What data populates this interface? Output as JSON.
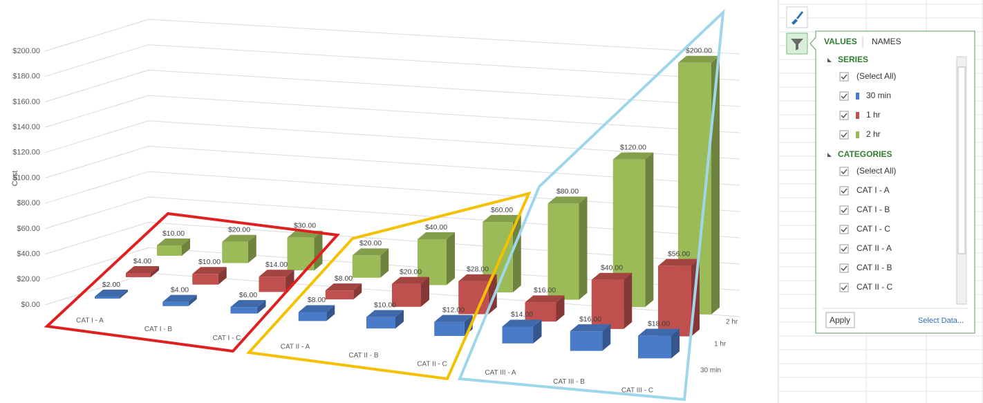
{
  "chart_data": {
    "type": "bar3d",
    "y_axis_title": "Cost",
    "categories": [
      "CAT I - A",
      "CAT I - B",
      "CAT I - C",
      "CAT II - A",
      "CAT II - B",
      "CAT II - C",
      "CAT III - A",
      "CAT III - B",
      "CAT III - C"
    ],
    "series": [
      {
        "name": "30 min",
        "color": "#4a7bc8",
        "values": [
          2,
          4,
          6,
          8,
          10,
          12,
          14,
          16,
          18
        ],
        "value_labels": [
          "$2.00",
          "$4.00",
          "$6.00",
          "$8.00",
          "$10.00",
          "$12.00",
          "$14.00",
          "$16.00",
          "$18.00"
        ]
      },
      {
        "name": "1 hr",
        "color": "#c0504d",
        "values": [
          4,
          10,
          14,
          8,
          20,
          28,
          16,
          40,
          56
        ],
        "value_labels": [
          "$4.00",
          "$10.00",
          "$14.00",
          "$8.00",
          "$20.00",
          "$28.00",
          "$16.00",
          "$40.00",
          "$56.00"
        ]
      },
      {
        "name": "2 hr",
        "color": "#9bbb59",
        "values": [
          10,
          20,
          30,
          20,
          40,
          60,
          80,
          120,
          200
        ],
        "value_labels": [
          "$10.00",
          "$20.00",
          "$30.00",
          "$20.00",
          "$40.00",
          "$60.00",
          "$80.00",
          "$120.00",
          "$200.00"
        ]
      }
    ],
    "ylim": [
      0,
      200
    ],
    "yticks": [
      {
        "value": 0,
        "label": "$0.00"
      },
      {
        "value": 20,
        "label": "$20.00"
      },
      {
        "value": 40,
        "label": "$40.00"
      },
      {
        "value": 60,
        "label": "$60.00"
      },
      {
        "value": 80,
        "label": "$80.00"
      },
      {
        "value": 100,
        "label": "$100.00"
      },
      {
        "value": 120,
        "label": "$120.00"
      },
      {
        "value": 140,
        "label": "$140.00"
      },
      {
        "value": 160,
        "label": "$160.00"
      },
      {
        "value": 180,
        "label": "$180.00"
      },
      {
        "value": 200,
        "label": "$200.00"
      }
    ],
    "grid": true
  },
  "filter_panel": {
    "tabs": [
      "VALUES",
      "NAMES"
    ],
    "series_heading": "SERIES",
    "categories_heading": "CATEGORIES",
    "select_all": "(Select All)",
    "apply": "Apply",
    "select_data": "Select Data..."
  }
}
